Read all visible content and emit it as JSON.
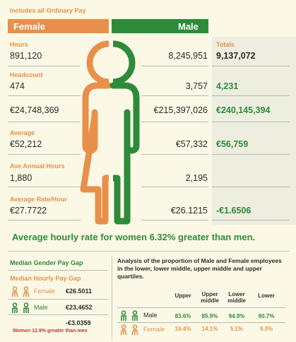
{
  "top_note": "Includes all Ordinary Pay",
  "banners": {
    "female": "Female",
    "male": "Male"
  },
  "totals_label": "Totals",
  "rows": {
    "hours": {
      "label": "Hours",
      "female": "891,120",
      "male": "8,245,951",
      "total": "9,137,072"
    },
    "headcount": {
      "label": "Headcount",
      "female": "474",
      "male": "3,757",
      "total": "4,231"
    },
    "pay": {
      "female": "€24,748,369",
      "male": "€215,397,026",
      "total": "€240,145,394"
    },
    "average": {
      "label": "Average",
      "female": "€52,212",
      "male": "€57,332",
      "total": "€56,759"
    },
    "annual_hours": {
      "label": "Ave Annual Hours",
      "female": "1,880",
      "male": "2,195"
    },
    "rate": {
      "label": "Average Rate/Hour",
      "female": "€27.7722",
      "male": "€26.1215",
      "total": "-€1.6506"
    }
  },
  "headline": "Average hourly rate for women 6.32% greater than men.",
  "median": {
    "title": "Median Gender Pay Gap",
    "subtitle": "Median Hourly Pay Gap",
    "female_label": "Female",
    "female_value": "€26.5011",
    "male_label": "Male",
    "male_value": "€23.4652",
    "difference": "-€3.0359",
    "note": "Women 12.9% greater than men"
  },
  "quartiles": {
    "description": "Analysis of the proportion of Male and Female employees in the lower, lower middle, upper middle and upper quartiles.",
    "headers": [
      "Upper",
      "Upper middle",
      "Lower middle",
      "Lower"
    ],
    "male_label": "Male",
    "female_label": "Female",
    "male_values": [
      "83.6%",
      "85.9%",
      "94.9%",
      "90.7%"
    ],
    "female_values": [
      "16.4%",
      "14.1%",
      "5.1%",
      "9.3%"
    ]
  },
  "colors": {
    "female": "#e8904a",
    "male": "#2e8b3a",
    "background": "#fbf9e6",
    "totals_bg": "#eeeee0",
    "note_red": "#c0392b"
  }
}
